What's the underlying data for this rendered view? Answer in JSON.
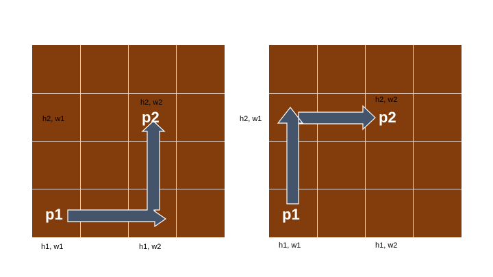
{
  "colors": {
    "grid_fill": "#833c0b",
    "grid_line": "#e8d6cc",
    "arrow_fill": "#44546a",
    "arrow_stroke": "#ffffff",
    "point_text": "#ffffff"
  },
  "left_panel": {
    "label_h2_w1": "h2, w1",
    "label_h2_w2": "h2, w2",
    "label_h1_w1": "h1, w1",
    "label_h1_w2": "h1, w2",
    "point_start": "p1",
    "point_end": "p2"
  },
  "right_panel": {
    "label_h2_w1": "h2, w1",
    "label_h2_w2": "h2, w2",
    "label_h1_w1": "h1, w1",
    "label_h1_w2": "h1, w2",
    "point_start": "p1",
    "point_end": "p2"
  }
}
